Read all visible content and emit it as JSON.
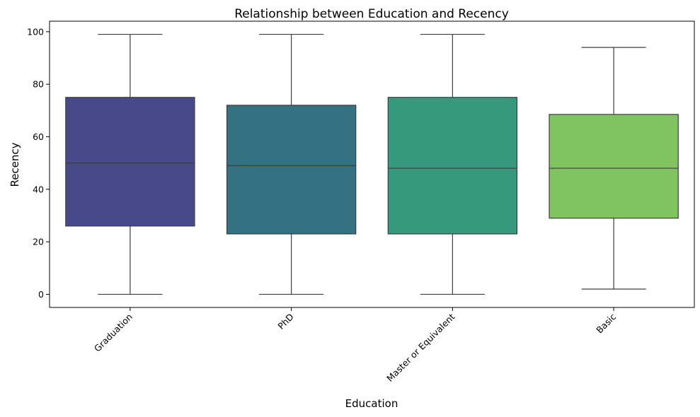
{
  "chart_data": {
    "type": "box",
    "title": "Relationship between Education and Recency",
    "xlabel": "Education",
    "ylabel": "Recency",
    "ylim": [
      -5,
      104
    ],
    "yticks": [
      0,
      20,
      40,
      60,
      80,
      100
    ],
    "categories": [
      "Graduation",
      "PhD",
      "Master or Equivalent",
      "Basic"
    ],
    "boxes": [
      {
        "category": "Graduation",
        "min": 0,
        "q1": 26,
        "median": 50,
        "q3": 75,
        "max": 99,
        "color": "#48498a"
      },
      {
        "category": "PhD",
        "min": 0,
        "q1": 23,
        "median": 49,
        "q3": 72,
        "max": 99,
        "color": "#347182"
      },
      {
        "category": "Master or Equivalent",
        "min": 0,
        "q1": 23,
        "median": 48,
        "q3": 75,
        "max": 99,
        "color": "#36997c"
      },
      {
        "category": "Basic",
        "min": 2,
        "q1": 29,
        "median": 48,
        "q3": 68.5,
        "max": 94,
        "color": "#80c462"
      }
    ],
    "x_tick_rotation": "45deg",
    "grid": false,
    "legend": "none"
  }
}
